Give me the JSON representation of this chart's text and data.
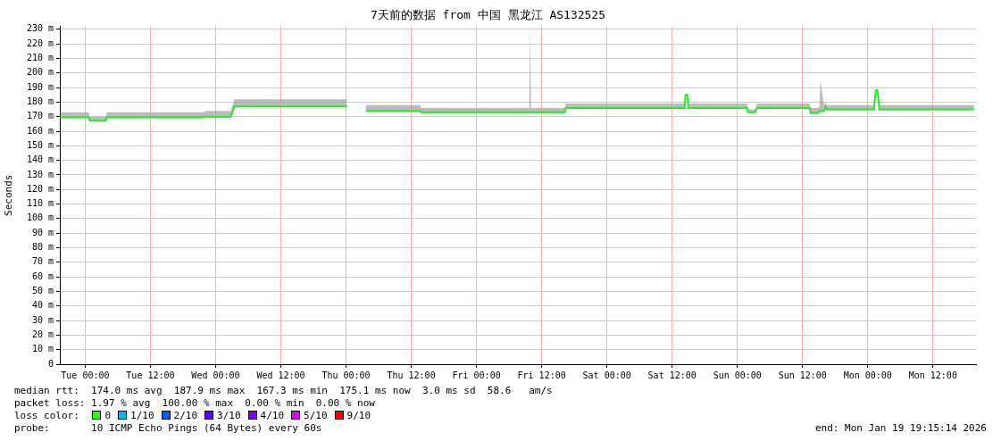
{
  "chart_data": {
    "type": "line",
    "title": "7天前的数据 from 中国 黑龙江 AS132525",
    "ylabel": "Seconds",
    "xlim": [
      "2026-01-12T19:20",
      "2026-01-19T19:55"
    ],
    "xticks": [
      {
        "value": "2026-01-13T00:00",
        "label": "Tue 00:00"
      },
      {
        "value": "2026-01-13T12:00",
        "label": "Tue 12:00"
      },
      {
        "value": "2026-01-14T00:00",
        "label": "Wed 00:00"
      },
      {
        "value": "2026-01-14T12:00",
        "label": "Wed 12:00"
      },
      {
        "value": "2026-01-15T00:00",
        "label": "Thu 00:00"
      },
      {
        "value": "2026-01-15T12:00",
        "label": "Thu 12:00"
      },
      {
        "value": "2026-01-16T00:00",
        "label": "Fri 00:00"
      },
      {
        "value": "2026-01-16T12:00",
        "label": "Fri 12:00"
      },
      {
        "value": "2026-01-17T00:00",
        "label": "Sat 00:00"
      },
      {
        "value": "2026-01-17T12:00",
        "label": "Sat 12:00"
      },
      {
        "value": "2026-01-18T00:00",
        "label": "Sun 00:00"
      },
      {
        "value": "2026-01-18T12:00",
        "label": "Sun 12:00"
      },
      {
        "value": "2026-01-19T00:00",
        "label": "Mon 00:00"
      },
      {
        "value": "2026-01-19T12:00",
        "label": "Mon 12:00"
      }
    ],
    "ylim": [
      0,
      232
    ],
    "yticks": [
      {
        "value": 0,
        "label": "0"
      },
      {
        "value": 10,
        "label": "10 m"
      },
      {
        "value": 20,
        "label": "20 m"
      },
      {
        "value": 30,
        "label": "30 m"
      },
      {
        "value": 40,
        "label": "40 m"
      },
      {
        "value": 50,
        "label": "50 m"
      },
      {
        "value": 60,
        "label": "60 m"
      },
      {
        "value": 70,
        "label": "70 m"
      },
      {
        "value": 80,
        "label": "80 m"
      },
      {
        "value": 90,
        "label": "90 m"
      },
      {
        "value": 100,
        "label": "100 m"
      },
      {
        "value": 110,
        "label": "110 m"
      },
      {
        "value": 120,
        "label": "120 m"
      },
      {
        "value": 130,
        "label": "130 m"
      },
      {
        "value": 140,
        "label": "140 m"
      },
      {
        "value": 150,
        "label": "150 m"
      },
      {
        "value": 160,
        "label": "160 m"
      },
      {
        "value": 170,
        "label": "170 m"
      },
      {
        "value": 180,
        "label": "180 m"
      },
      {
        "value": 190,
        "label": "190 m"
      },
      {
        "value": 200,
        "label": "200 m"
      },
      {
        "value": 210,
        "label": "210 m"
      },
      {
        "value": 220,
        "label": "220 m"
      },
      {
        "value": 230,
        "label": "230 m"
      }
    ],
    "grid": true,
    "legend": false,
    "marker": "none",
    "line_style": "solid",
    "series": [
      {
        "color": "#22ee22",
        "x": [
          "2026-01-12T19:24",
          "2026-01-13T00:40",
          "2026-01-13T00:49",
          "2026-01-13T03:47",
          "2026-01-13T03:57",
          "2026-01-13T21:52",
          "2026-01-13T22:02",
          "2026-01-14T02:48",
          "2026-01-14T03:27",
          "2026-01-15T00:10",
          "2026-01-15T01:48",
          "2026-01-15T03:37",
          "2026-01-15T13:38",
          "2026-01-15T13:48",
          "2026-01-16T09:42",
          "2026-01-16T09:52",
          "2026-01-16T10:02",
          "2026-01-16T16:16",
          "2026-01-16T16:26",
          "2026-01-17T14:18",
          "2026-01-17T14:28",
          "2026-01-17T14:48",
          "2026-01-17T14:58",
          "2026-01-18T01:48",
          "2026-01-18T01:58",
          "2026-01-18T03:17",
          "2026-01-18T03:37",
          "2026-01-18T13:19",
          "2026-01-18T13:29",
          "2026-01-18T14:48",
          "2026-01-18T15:07",
          "2026-01-18T15:17",
          "2026-01-18T15:57",
          "2026-01-18T16:16",
          "2026-01-18T16:26",
          "2026-01-19T01:09",
          "2026-01-19T01:28",
          "2026-01-19T01:48",
          "2026-01-19T02:08",
          "2026-01-19T19:34"
        ],
        "values": [
          169.5,
          169.5,
          167.3,
          167.3,
          169.5,
          169.5,
          170,
          170,
          177,
          177,
          null,
          174,
          174,
          173,
          173,
          173,
          173,
          173,
          176,
          176,
          185,
          185,
          176,
          176,
          173,
          173,
          176,
          176,
          172.5,
          172.5,
          174,
          174,
          174,
          177,
          175,
          175,
          188,
          188,
          175,
          175
        ],
        "lower": [
          169,
          169,
          167,
          167,
          169,
          169,
          169.5,
          169.5,
          176.5,
          176.5,
          null,
          173.5,
          173.5,
          172.5,
          172.5,
          172.5,
          172.5,
          172.5,
          175.5,
          175.5,
          184,
          184,
          175.5,
          175.5,
          172.5,
          172.5,
          175.5,
          175.5,
          172,
          172,
          173.5,
          173.5,
          173.5,
          176.5,
          174.5,
          174.5,
          187,
          187,
          174.5,
          174.5
        ],
        "upper": [
          173,
          173,
          170,
          170,
          173,
          173,
          174,
          174,
          182,
          182,
          null,
          178,
          178,
          176,
          176,
          230,
          176,
          176,
          179,
          179,
          186,
          186,
          179,
          179,
          175,
          175,
          179,
          179,
          176,
          176,
          177,
          195,
          178,
          180,
          178,
          178,
          189,
          189,
          178,
          178
        ]
      }
    ],
    "annotations": [
      "median rtt:  174.0 ms avg  187.9 ms max  167.3 ms min  175.1 ms now  3.0 ms sd  58.6   am/s",
      "packet loss: 1.97 % avg  100.00 % max  0.00 % min  0.00 % now",
      "loss color:",
      "0",
      "1/10",
      "2/10",
      "3/10",
      "4/10",
      "5/10",
      "9/10",
      "probe:       10 ICMP Echo Pings (64 Bytes) every 60s",
      "end: Mon Jan 19 19:15:14 2026"
    ]
  }
}
